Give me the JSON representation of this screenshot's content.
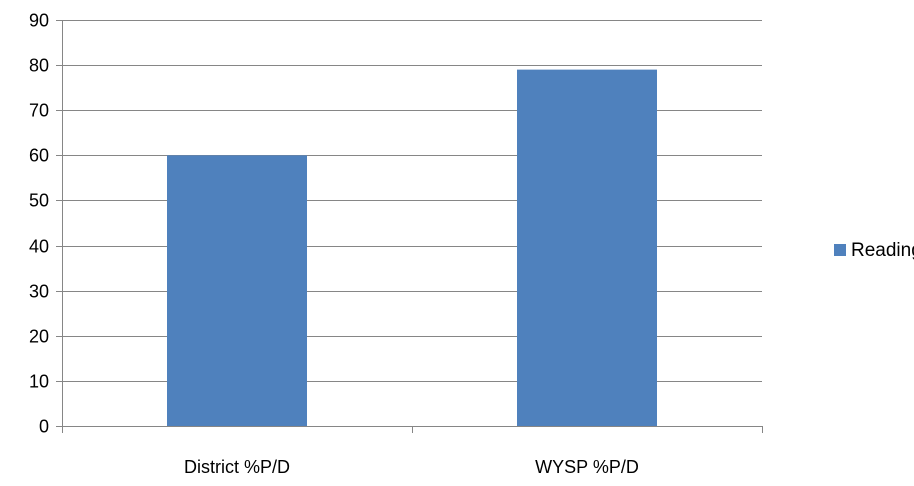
{
  "chart_data": {
    "type": "bar",
    "categories": [
      "District %P/D",
      "WYSP %P/D"
    ],
    "series": [
      {
        "name": "Reading",
        "values": [
          60,
          79
        ],
        "color": "#4F81BD"
      }
    ],
    "ylim": [
      0,
      90
    ],
    "yticks": [
      0,
      10,
      20,
      30,
      40,
      50,
      60,
      70,
      80,
      90
    ],
    "grid": true,
    "legend_position": "right"
  }
}
